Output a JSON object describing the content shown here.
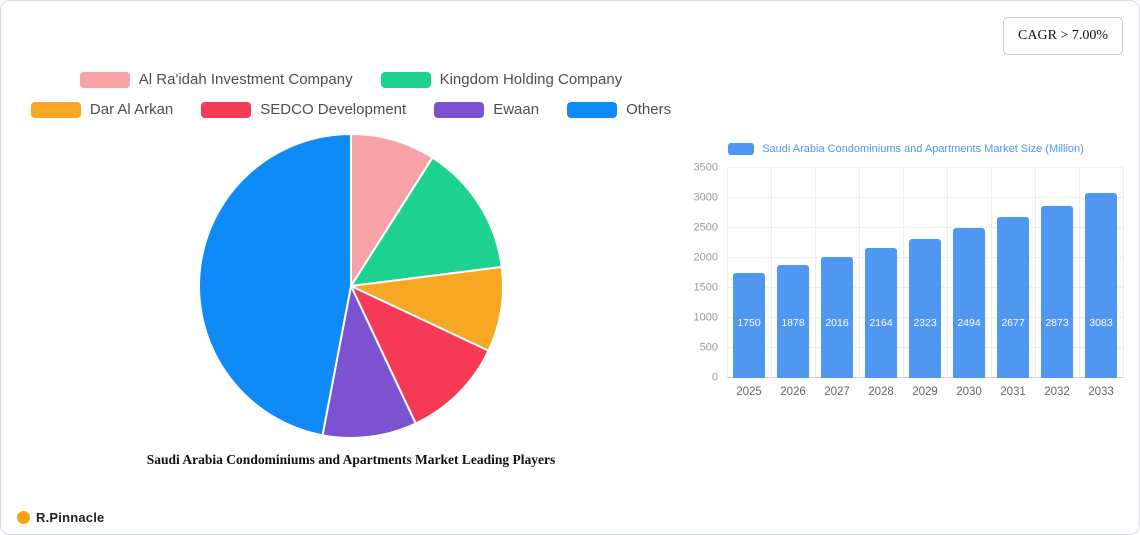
{
  "cagr_badge": {
    "label": "CAGR > 7.00%"
  },
  "brand": {
    "name": "R.Pinnacle",
    "logo_color": "#f7a11a"
  },
  "chart_data": [
    {
      "type": "pie",
      "title": "Saudi Arabia Condominiums and Apartments Market Leading Players",
      "labels": [
        "Al Ra'idah Investment Company",
        "Kingdom Holding Company",
        "Dar Al Arkan",
        "SEDCO Development",
        "Ewaan",
        "Others"
      ],
      "values": [
        9,
        14,
        9,
        11,
        10,
        47
      ],
      "value_format": "percent-estimated",
      "colors": [
        "#f7a2a7",
        "#1ed28f",
        "#f6a723",
        "#f43a55",
        "#7b52cf",
        "#0f8bf8"
      ],
      "legend_position": "top",
      "start_angle": "12 o'clock, clockwise"
    },
    {
      "type": "bar",
      "legend": [
        "Saudi Arabia Condominiums and Apartments Market Size (Million)"
      ],
      "categories": [
        "2025",
        "2026",
        "2027",
        "2028",
        "2029",
        "2030",
        "2031",
        "2032",
        "2033"
      ],
      "values": [
        1750,
        1878,
        2016,
        2164,
        2323,
        2494,
        2677,
        2873,
        3083
      ],
      "y_ticks": [
        0,
        500,
        1000,
        1500,
        2000,
        2500,
        3000,
        3500
      ],
      "ylim": [
        0,
        3500
      ],
      "bar_color": "#4f97f0",
      "grid": true,
      "legend_position": "top"
    }
  ]
}
